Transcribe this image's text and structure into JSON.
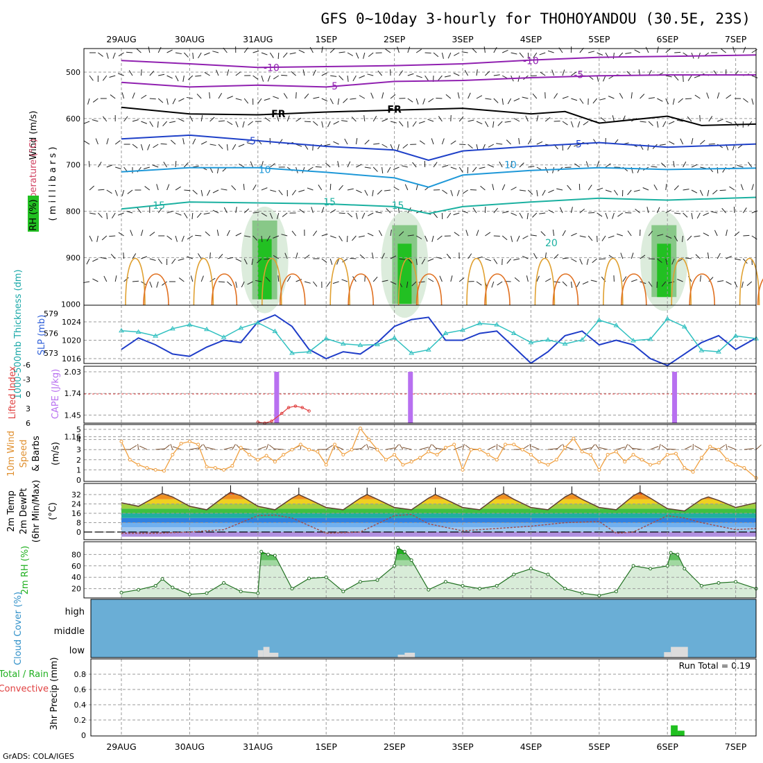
{
  "title": "GFS 0~10day 3-hourly for THOHOYANDOU (30.5E, 23S)",
  "credit": "GrADS: COLA/IGES",
  "colors": {
    "rh_green": "#22c022",
    "temp_purple": "#9020b0",
    "temp_blue": "#1e40c8",
    "temp_cyan": "#1e98d8",
    "temp_teal": "#1ab0a0",
    "temp_orange": "#e0a030",
    "slp_blue": "#1e3cc8",
    "thick_cyan": "#30c0c0",
    "cape_violet": "#b870f0",
    "lifted_red": "#e04040",
    "wind_orange": "#f0a040",
    "cloud_blue": "#6aaed6",
    "cloud_grey": "#dcdcdc",
    "precip_green": "#20c020"
  },
  "chart_data": [
    {
      "panel": "upper-air",
      "type": "heatmap",
      "ylabel_parts": [
        "Wind (m/s)",
        "Temperature (°C)",
        "RH (%)"
      ],
      "ylabel_units": "( m i l l i b a r s )",
      "x_dates": [
        "29AUG",
        "30AUG",
        "31AUG",
        "1SEP",
        "2SEP",
        "3SEP",
        "4SEP",
        "5SEP",
        "6SEP",
        "7SEP"
      ],
      "yticks": [
        "500",
        "600",
        "700",
        "800",
        "900",
        "1000"
      ],
      "ylim": [
        1000,
        450
      ],
      "contour_labels": [
        {
          "text": "-10",
          "p": 490,
          "day": 2.2,
          "color": "purple"
        },
        {
          "text": "-10",
          "p": 475,
          "day": 6.0,
          "color": "purple"
        },
        {
          "text": "-5",
          "p": 530,
          "day": 3.1,
          "color": "purple"
        },
        {
          "text": "-5",
          "p": 505,
          "day": 6.7,
          "color": "purple"
        },
        {
          "text": "FR",
          "p": 590,
          "day": 2.3,
          "color": "black"
        },
        {
          "text": "FR",
          "p": 580,
          "day": 4.0,
          "color": "black"
        },
        {
          "text": "-5",
          "p": 648,
          "day": 1.9,
          "color": "blue"
        },
        {
          "text": "5",
          "p": 655,
          "day": 6.7,
          "color": "blue"
        },
        {
          "text": "10",
          "p": 710,
          "day": 2.1,
          "color": "cyan"
        },
        {
          "text": "10",
          "p": 700,
          "day": 5.7,
          "color": "cyan"
        },
        {
          "text": "15",
          "p": 787,
          "day": 0.55,
          "color": "teal"
        },
        {
          "text": "15",
          "p": 780,
          "day": 3.05,
          "color": "teal"
        },
        {
          "text": "15",
          "p": 787,
          "day": 4.05,
          "color": "teal"
        },
        {
          "text": "20",
          "p": 868,
          "day": 6.3,
          "color": "teal"
        }
      ],
      "lines": [
        {
          "name": "-10",
          "color": "purple",
          "x": [
            0,
            1,
            2,
            3,
            4,
            5,
            6,
            7,
            8,
            9.3
          ],
          "p": [
            475,
            482,
            490,
            488,
            486,
            482,
            474,
            468,
            466,
            463
          ]
        },
        {
          "name": "-5",
          "color": "purple",
          "x": [
            0,
            1,
            2,
            3,
            4,
            5,
            6,
            7,
            8,
            9.3
          ],
          "p": [
            522,
            532,
            528,
            532,
            520,
            518,
            512,
            508,
            506,
            506
          ]
        },
        {
          "name": "FR",
          "color": "black",
          "x": [
            0,
            1,
            2,
            3,
            4,
            5,
            6,
            6.5,
            7,
            8,
            8.5,
            9.3
          ],
          "p": [
            576,
            590,
            592,
            586,
            582,
            578,
            590,
            585,
            610,
            595,
            615,
            612
          ]
        },
        {
          "name": "5",
          "color": "blue",
          "x": [
            0,
            1,
            2,
            3,
            4,
            4.5,
            5,
            6,
            7,
            8,
            9.3
          ],
          "p": [
            644,
            636,
            648,
            660,
            668,
            690,
            670,
            660,
            652,
            662,
            655
          ]
        },
        {
          "name": "10",
          "color": "cyan",
          "x": [
            0,
            1,
            2,
            3,
            4,
            4.5,
            5,
            6,
            7,
            8,
            9.3
          ],
          "p": [
            715,
            706,
            706,
            716,
            728,
            748,
            722,
            712,
            706,
            710,
            707
          ]
        },
        {
          "name": "15",
          "color": "teal",
          "x": [
            0,
            1,
            2,
            3,
            4,
            4.5,
            5,
            6,
            7,
            8,
            9.3
          ],
          "p": [
            795,
            780,
            782,
            784,
            790,
            805,
            790,
            780,
            772,
            776,
            770
          ]
        }
      ],
      "rh_cores": [
        {
          "day": 2.1,
          "p_top": 820,
          "p_bottom": 990
        },
        {
          "day": 4.15,
          "p_top": 830,
          "p_bottom": 1000
        },
        {
          "day": 7.95,
          "p_top": 830,
          "p_bottom": 985
        }
      ]
    },
    {
      "panel": "slp-thickness",
      "type": "line",
      "ylabel": "SLP (mb)",
      "ylabel2": "1000-500mb Thickness (dm)",
      "left_ticks": [
        "579",
        "576",
        "573"
      ],
      "right_ticks": [
        "1024",
        "1020",
        "1016"
      ],
      "slp_lim": [
        1013,
        1027
      ],
      "x": [
        0,
        0.25,
        0.5,
        0.75,
        1,
        1.25,
        1.5,
        1.75,
        2,
        2.25,
        2.5,
        2.75,
        3,
        3.25,
        3.5,
        3.75,
        4,
        4.25,
        4.5,
        4.75,
        5,
        5.25,
        5.5,
        5.75,
        6,
        6.25,
        6.5,
        6.75,
        7,
        7.25,
        7.5,
        7.75,
        8,
        8.25,
        8.5,
        8.75,
        9,
        9.3
      ],
      "series": [
        {
          "name": "SLP",
          "values": [
            1018,
            1020.5,
            1019,
            1017,
            1016.5,
            1018.5,
            1020,
            1019.5,
            1024,
            1025.5,
            1023,
            1018,
            1016,
            1017.5,
            1017,
            1019.5,
            1023,
            1024.5,
            1025,
            1020,
            1020,
            1021.5,
            1022,
            1018.5,
            1015,
            1017.5,
            1021,
            1022,
            1019,
            1020,
            1019,
            1016,
            1014.5,
            1017,
            1019.5,
            1021,
            1018,
            1020.5
          ]
        },
        {
          "name": "Thickness",
          "values": [
            576.4,
            576.2,
            575.6,
            576.7,
            577.3,
            576.6,
            575.4,
            576.8,
            577.6,
            576.3,
            573.0,
            573.2,
            575.2,
            574.4,
            574.2,
            574.3,
            575.3,
            573.0,
            573.5,
            576.0,
            576.5,
            577.5,
            577.3,
            576.0,
            574.6,
            575.0,
            574.4,
            575.0,
            578.0,
            577.2,
            574.9,
            575.1,
            578.2,
            577.0,
            573.4,
            573.2,
            575.6,
            575.2
          ]
        }
      ]
    },
    {
      "panel": "cape-li",
      "type": "bar",
      "ylabel": "CAPE (J/kg)",
      "ylabel2": "Lifted Index",
      "left_ticks": [
        "-6",
        "-3",
        "0",
        "3",
        "6"
      ],
      "right_ticks": [
        "2.03",
        "1.74",
        "1.45",
        "1.16"
      ],
      "cape_bars": [
        {
          "day": 2.27,
          "value": 2.03
        },
        {
          "day": 4.23,
          "value": 2.03
        },
        {
          "day": 8.1,
          "value": 2.03
        }
      ],
      "lifted_index": {
        "x": [
          2.0,
          2.1,
          2.2,
          2.35,
          2.45,
          2.55,
          2.65,
          2.75
        ],
        "values": [
          5.8,
          6,
          5.6,
          4.0,
          2.8,
          2.5,
          2.8,
          3.5
        ]
      }
    },
    {
      "panel": "wind10",
      "type": "line",
      "ylabel": "10m Wind Speed & Barbs (m/s)",
      "ylabel_parts": [
        "10m Wind",
        "Speed",
        "& Barbs",
        "(m/s)"
      ],
      "ylim": [
        0,
        5.5
      ],
      "yticks": [
        "0",
        "1",
        "2",
        "3",
        "4",
        "5"
      ],
      "x": [
        0,
        0.125,
        0.25,
        0.375,
        0.5,
        0.625,
        0.75,
        0.875,
        1,
        1.125,
        1.25,
        1.375,
        1.5,
        1.625,
        1.75,
        1.875,
        2,
        2.125,
        2.25,
        2.375,
        2.5,
        2.625,
        2.75,
        2.875,
        3,
        3.125,
        3.25,
        3.375,
        3.5,
        3.625,
        3.75,
        3.875,
        4,
        4.125,
        4.25,
        4.375,
        4.5,
        4.625,
        4.75,
        4.875,
        5,
        5.125,
        5.25,
        5.375,
        5.5,
        5.625,
        5.75,
        5.875,
        6,
        6.125,
        6.25,
        6.375,
        6.5,
        6.625,
        6.75,
        6.875,
        7,
        7.125,
        7.25,
        7.375,
        7.5,
        7.625,
        7.75,
        7.875,
        8,
        8.125,
        8.25,
        8.375,
        8.5,
        8.625,
        8.75,
        8.875,
        9,
        9.125,
        9.3
      ],
      "values": [
        3.8,
        2.0,
        1.5,
        1.2,
        1.0,
        0.9,
        2.5,
        3.6,
        3.8,
        3.5,
        1.3,
        1.2,
        1.0,
        1.4,
        3.2,
        2.5,
        2.0,
        2.4,
        1.8,
        2.5,
        3.0,
        3.5,
        3.0,
        2.8,
        1.5,
        3.5,
        2.5,
        3.0,
        5.1,
        4.0,
        3.0,
        2.0,
        2.5,
        1.5,
        1.8,
        2.2,
        2.8,
        2.5,
        3.2,
        3.5,
        1.0,
        3.0,
        3.0,
        2.5,
        2.0,
        3.5,
        3.5,
        3.0,
        2.5,
        1.8,
        1.5,
        2.0,
        3.2,
        4.1,
        2.8,
        2.5,
        1.0,
        2.5,
        2.8,
        1.8,
        2.5,
        2.0,
        1.5,
        1.7,
        2.5,
        2.6,
        1.2,
        0.8,
        2.2,
        3.3,
        3.0,
        2.0,
        1.5,
        1.2,
        0.2
      ]
    },
    {
      "panel": "temp2m",
      "type": "area",
      "ylabel": "2m Temp 2m DewPt (6hr Min/Max) (°C)",
      "ylabel_parts": [
        "2m Temp",
        "2m DewPt",
        "(6hr Min/Max)",
        "(°C)"
      ],
      "ylim": [
        -4,
        38
      ],
      "yticks": [
        "0",
        "8",
        "16",
        "24",
        "32"
      ],
      "temp": {
        "x": [
          0,
          0.25,
          0.5,
          0.6,
          0.75,
          1,
          1.25,
          1.5,
          1.6,
          1.75,
          2,
          2.25,
          2.5,
          2.6,
          2.75,
          3,
          3.25,
          3.5,
          3.6,
          3.75,
          4,
          4.25,
          4.5,
          4.6,
          4.75,
          5,
          5.25,
          5.5,
          5.6,
          5.75,
          6,
          6.25,
          6.5,
          6.6,
          6.75,
          7,
          7.25,
          7.5,
          7.6,
          7.75,
          8,
          8.25,
          8.5,
          8.6,
          8.75,
          9,
          9.3
        ],
        "values": [
          25,
          22,
          30,
          33,
          30,
          22,
          19,
          30,
          34,
          31,
          22,
          19,
          29,
          32,
          28,
          21,
          19,
          29,
          32,
          28,
          21,
          19,
          29,
          32,
          28,
          21,
          19,
          30,
          33,
          28,
          21,
          19,
          30,
          33,
          28,
          21,
          19,
          31,
          34,
          29,
          20,
          18,
          28,
          30,
          27,
          21,
          25
        ]
      },
      "dewpoint": {
        "x": [
          0,
          0.5,
          1,
          1.5,
          2,
          2.25,
          2.5,
          3,
          3.5,
          4,
          4.25,
          4.5,
          5,
          5.5,
          6,
          6.5,
          7,
          7.25,
          7.5,
          8,
          8.25,
          8.5,
          9,
          9.3
        ],
        "values": [
          -1,
          -1,
          0,
          2,
          14,
          14.5,
          12,
          -1,
          0,
          14,
          15,
          7,
          1,
          3,
          5,
          8,
          9,
          -1,
          0,
          14,
          12,
          8,
          2,
          3
        ]
      }
    },
    {
      "panel": "rh2m",
      "type": "area",
      "ylabel": "2m RH (%)",
      "ylim": [
        0,
        100
      ],
      "yticks": [
        "20",
        "40",
        "60",
        "80"
      ],
      "x": [
        0,
        0.25,
        0.5,
        0.6,
        0.75,
        1,
        1.25,
        1.5,
        1.75,
        2,
        2.05,
        2.15,
        2.25,
        2.5,
        2.75,
        3,
        3.25,
        3.5,
        3.75,
        4,
        4.05,
        4.15,
        4.25,
        4.5,
        4.75,
        5,
        5.25,
        5.5,
        5.75,
        6,
        6.25,
        6.5,
        6.75,
        7,
        7.25,
        7.5,
        7.75,
        8,
        8.05,
        8.15,
        8.25,
        8.5,
        8.75,
        9,
        9.3
      ],
      "values": [
        13,
        18,
        25,
        37,
        22,
        10,
        12,
        30,
        15,
        12,
        85,
        80,
        78,
        20,
        38,
        40,
        15,
        32,
        35,
        60,
        92,
        85,
        70,
        18,
        32,
        25,
        20,
        25,
        45,
        55,
        45,
        20,
        12,
        8,
        15,
        60,
        55,
        60,
        83,
        80,
        55,
        25,
        30,
        32,
        20
      ]
    },
    {
      "panel": "cloud",
      "type": "bar",
      "ylabel": "Cloud Cover (%)",
      "levels": [
        "high",
        "middle",
        "low"
      ],
      "low_cloud_blocks": [
        {
          "x0": 2.0,
          "x1": 2.08,
          "frac": 0.38
        },
        {
          "x0": 2.08,
          "x1": 2.17,
          "frac": 0.55
        },
        {
          "x0": 2.17,
          "x1": 2.3,
          "frac": 0.25
        },
        {
          "x0": 4.05,
          "x1": 4.15,
          "frac": 0.15
        },
        {
          "x0": 4.15,
          "x1": 4.3,
          "frac": 0.25
        },
        {
          "x0": 7.95,
          "x1": 8.05,
          "frac": 0.28
        },
        {
          "x0": 8.05,
          "x1": 8.3,
          "frac": 0.55
        }
      ]
    },
    {
      "panel": "precip",
      "type": "bar",
      "ylabel": "3hr Precip (mm)",
      "ylabel2_parts": [
        "Total / Rain",
        "Convective"
      ],
      "run_total": "Run Total = 0.19",
      "ylim": [
        0,
        1
      ],
      "yticks": [
        "0",
        "0.2",
        "0.4",
        "0.6",
        "0.8"
      ],
      "bars": [
        {
          "x0": 8.05,
          "x1": 8.15,
          "value": 0.13
        },
        {
          "x0": 8.15,
          "x1": 8.25,
          "value": 0.06
        }
      ]
    }
  ]
}
